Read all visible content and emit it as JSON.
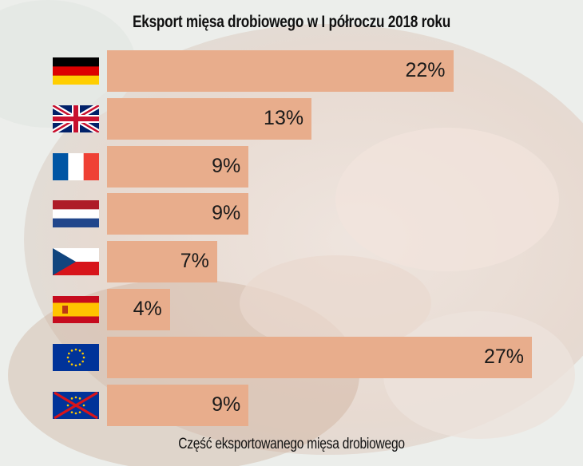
{
  "chart_data": {
    "type": "bar",
    "orientation": "horizontal",
    "title": "Eksport mięsa drobiowego w I półroczu 2018 roku",
    "xlabel": "Część eksportowanego mięsa drobiowego",
    "ylabel": "",
    "xlim": [
      0,
      27
    ],
    "grid": false,
    "categories": [
      "germany-flag",
      "uk-flag",
      "france-flag",
      "netherlands-flag",
      "czech-flag",
      "spain-flag",
      "eu-flag",
      "eu-crossed-flag"
    ],
    "values": [
      22,
      13,
      9,
      9,
      7,
      4,
      27,
      9
    ],
    "labels": [
      "22%",
      "13%",
      "9%",
      "9%",
      "7%",
      "4%",
      "27%",
      "9%"
    ],
    "bar_color": "#e8ad8c"
  }
}
